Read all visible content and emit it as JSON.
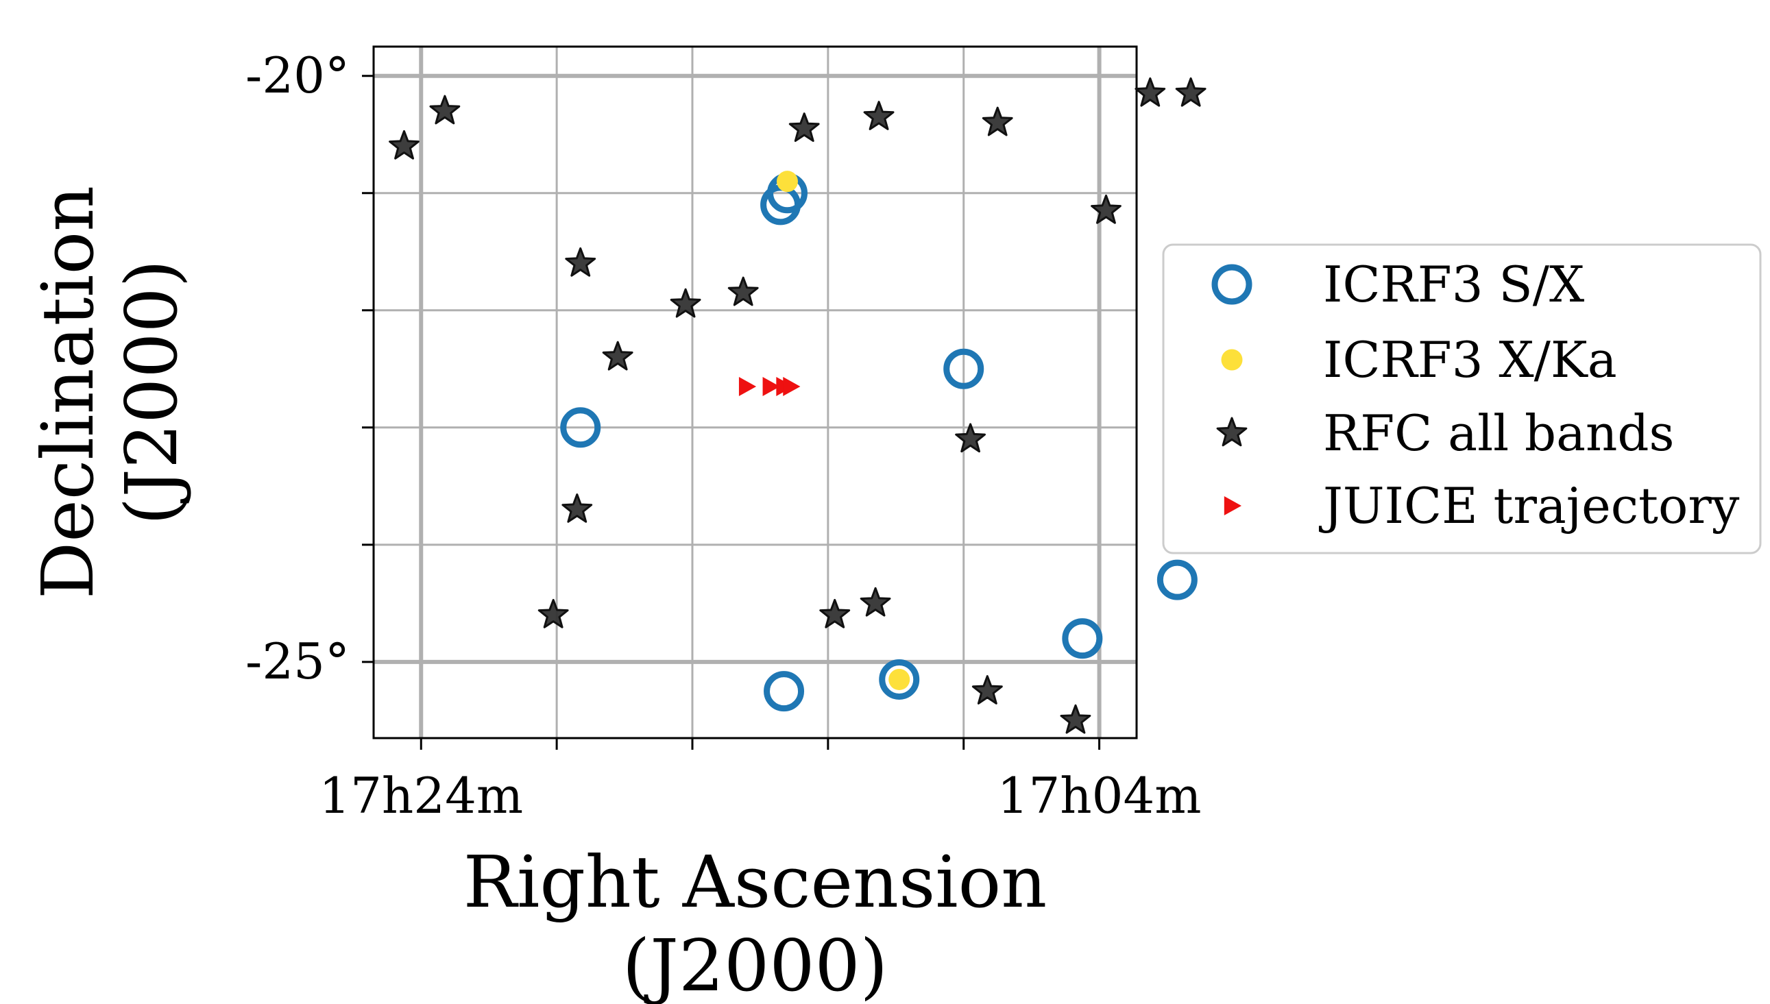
{
  "chart_data": {
    "type": "scatter",
    "title": "",
    "xlabel": [
      "Right Ascension",
      "(J2000)"
    ],
    "ylabel": [
      "Declination",
      "(J2000)"
    ],
    "x_unit": "minutes of RA (17h)",
    "xlim": [
      25.4,
      2.9
    ],
    "ylim": [
      -25.65,
      -19.75
    ],
    "x_ticks": [
      24,
      20,
      16,
      12,
      8,
      4
    ],
    "x_tick_labels": [
      "17h24m",
      "",
      "",
      "",
      "",
      "17h04m"
    ],
    "y_ticks": [
      -20,
      -21,
      -22,
      -23,
      -24,
      -25
    ],
    "y_tick_labels": [
      "-20°",
      "",
      "",
      "",
      "",
      "-25°"
    ],
    "major_grid_x": [
      24,
      4
    ],
    "major_grid_y": [
      -20,
      -25
    ],
    "grid": true,
    "legend_position": "outside-right",
    "series": [
      {
        "name": "ICRF3 S/X",
        "marker": "open-circle",
        "color": "#1f77b4",
        "x": [
          13.2,
          13.4,
          19.3,
          8.0,
          1.7,
          4.5,
          13.3,
          9.9
        ],
        "y": [
          -21.0,
          -21.1,
          -23.0,
          -22.5,
          -24.3,
          -24.8,
          -25.25,
          -25.15
        ]
      },
      {
        "name": "ICRF3 X/Ka",
        "marker": "filled-circle",
        "color": "#fde03a",
        "x": [
          13.2,
          9.9
        ],
        "y": [
          -20.9,
          -25.15
        ]
      },
      {
        "name": "RFC all bands",
        "marker": "star",
        "color": "#333333",
        "x": [
          24.5,
          23.3,
          19.3,
          18.2,
          16.2,
          14.5,
          12.7,
          10.5,
          7.0,
          3.8,
          1.3,
          2.5,
          7.8,
          19.4,
          20.1,
          10.6,
          11.8,
          7.3,
          4.7
        ],
        "y": [
          -20.6,
          -20.3,
          -21.6,
          -22.4,
          -21.95,
          -21.85,
          -20.45,
          -20.35,
          -20.4,
          -21.15,
          -20.15,
          -20.15,
          -23.1,
          -23.7,
          -24.6,
          -24.5,
          -24.6,
          -25.25,
          -25.5
        ]
      },
      {
        "name": "JUICE trajectory",
        "marker": "triangle-right",
        "color": "#ee1111",
        "x": [
          14.4,
          13.7,
          13.3,
          13.1
        ],
        "y": [
          -22.65,
          -22.65,
          -22.65,
          -22.65
        ]
      }
    ]
  }
}
